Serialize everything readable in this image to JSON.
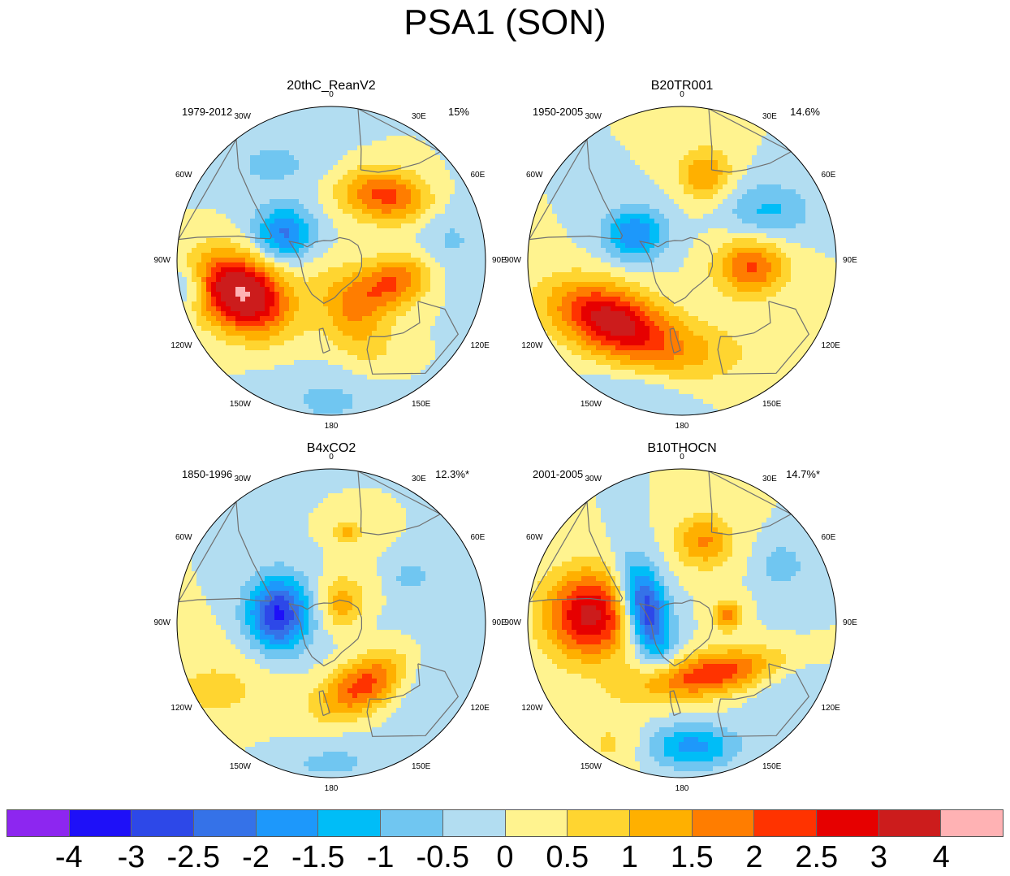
{
  "title": "PSA1 (SON)",
  "panels": [
    {
      "name": "20thC_ReanV2",
      "years": "1979-2012",
      "variance": "15%",
      "features": [
        {
          "lon": -110,
          "colat": 0.62,
          "sx": 0.22,
          "sy": 0.16,
          "rot": 30,
          "amp": 4.1
        },
        {
          "lon": 110,
          "colat": 0.42,
          "sx": 0.2,
          "sy": 0.12,
          "rot": -20,
          "amp": 2.1
        },
        {
          "lon": 40,
          "colat": 0.55,
          "sx": 0.22,
          "sy": 0.12,
          "rot": 10,
          "amp": 2.2
        },
        {
          "lon": -60,
          "colat": 0.35,
          "sx": 0.14,
          "sy": 0.12,
          "rot": 0,
          "amp": -2.1
        },
        {
          "lon": 160,
          "colat": 0.4,
          "sx": 0.25,
          "sy": 0.14,
          "rot": 60,
          "amp": 1.2
        },
        {
          "lon": -100,
          "colat": 0.95,
          "sx": 0.1,
          "sy": 0.1,
          "rot": 0,
          "amp": -1.0
        },
        {
          "lon": 80,
          "colat": 0.75,
          "sx": 0.18,
          "sy": 0.22,
          "rot": 0,
          "amp": -0.7
        },
        {
          "lon": -30,
          "colat": 0.72,
          "sx": 0.3,
          "sy": 0.15,
          "rot": 0,
          "amp": -0.6
        },
        {
          "lon": 180,
          "colat": 0.9,
          "sx": 0.3,
          "sy": 0.15,
          "rot": 0,
          "amp": -0.6
        }
      ]
    },
    {
      "name": "B20TR001",
      "years": "1950-2005",
      "variance": "14.6%",
      "features": [
        {
          "lon": -130,
          "colat": 0.6,
          "sx": 0.28,
          "sy": 0.15,
          "rot": 20,
          "amp": 3.3
        },
        {
          "lon": 95,
          "colat": 0.45,
          "sx": 0.16,
          "sy": 0.13,
          "rot": 0,
          "amp": 2.1
        },
        {
          "lon": -60,
          "colat": 0.35,
          "sx": 0.14,
          "sy": 0.12,
          "rot": 0,
          "amp": -2.0
        },
        {
          "lon": 15,
          "colat": 0.58,
          "sx": 0.12,
          "sy": 0.12,
          "rot": 0,
          "amp": 1.5
        },
        {
          "lon": 60,
          "colat": 0.65,
          "sx": 0.2,
          "sy": 0.13,
          "rot": 0,
          "amp": -1.1
        },
        {
          "lon": 175,
          "colat": 0.6,
          "sx": 0.3,
          "sy": 0.15,
          "rot": 0,
          "amp": 0.9
        },
        {
          "lon": -160,
          "colat": 0.92,
          "sx": 0.25,
          "sy": 0.12,
          "rot": 0,
          "amp": -0.6
        }
      ]
    },
    {
      "name": "B4xCO2",
      "years": "1850-1996",
      "variance": "12.3%*",
      "features": [
        {
          "lon": -80,
          "colat": 0.35,
          "sx": 0.14,
          "sy": 0.17,
          "rot": 0,
          "amp": -3.1
        },
        {
          "lon": 150,
          "colat": 0.45,
          "sx": 0.22,
          "sy": 0.12,
          "rot": -30,
          "amp": 2.6
        },
        {
          "lon": 30,
          "colat": 0.15,
          "sx": 0.1,
          "sy": 0.12,
          "rot": 0,
          "amp": 1.3
        },
        {
          "lon": 10,
          "colat": 0.6,
          "sx": 0.08,
          "sy": 0.05,
          "rot": 0,
          "amp": 1.2
        },
        {
          "lon": 60,
          "colat": 0.6,
          "sx": 0.08,
          "sy": 0.06,
          "rot": 0,
          "amp": -0.9
        },
        {
          "lon": 120,
          "colat": 0.65,
          "sx": 0.4,
          "sy": 0.2,
          "rot": 0,
          "amp": -0.6
        },
        {
          "lon": -120,
          "colat": 0.85,
          "sx": 0.35,
          "sy": 0.2,
          "rot": 0,
          "amp": 0.6
        },
        {
          "lon": 180,
          "colat": 0.9,
          "sx": 0.3,
          "sy": 0.12,
          "rot": 0,
          "amp": -0.6
        }
      ]
    },
    {
      "name": "B10THOCN",
      "years": "2001-2005",
      "variance": "14.7%*",
      "features": [
        {
          "lon": -85,
          "colat": 0.6,
          "sx": 0.2,
          "sy": 0.2,
          "rot": 0,
          "amp": 3.2
        },
        {
          "lon": -70,
          "colat": 0.25,
          "sx": 0.1,
          "sy": 0.22,
          "rot": -15,
          "amp": -3.3
        },
        {
          "lon": 150,
          "colat": 0.38,
          "sx": 0.35,
          "sy": 0.1,
          "rot": -10,
          "amp": 2.4
        },
        {
          "lon": 15,
          "colat": 0.55,
          "sx": 0.13,
          "sy": 0.12,
          "rot": 0,
          "amp": 1.6
        },
        {
          "lon": 80,
          "colat": 0.3,
          "sx": 0.07,
          "sy": 0.07,
          "rot": 0,
          "amp": 1.6
        },
        {
          "lon": 175,
          "colat": 0.8,
          "sx": 0.2,
          "sy": 0.1,
          "rot": 0,
          "amp": -1.7
        },
        {
          "lon": 60,
          "colat": 0.75,
          "sx": 0.1,
          "sy": 0.1,
          "rot": 0,
          "amp": -0.9
        },
        {
          "lon": 120,
          "colat": 0.8,
          "sx": 0.2,
          "sy": 0.2,
          "rot": 0,
          "amp": -0.6
        },
        {
          "lon": -150,
          "colat": 0.9,
          "sx": 0.15,
          "sy": 0.12,
          "rot": 0,
          "amp": 0.6
        }
      ]
    }
  ],
  "longitude_labels": [
    "0",
    "30E",
    "60E",
    "90E",
    "120E",
    "150E",
    "180",
    "150W",
    "120W",
    "90W",
    "60W",
    "30W"
  ],
  "colorbar": {
    "labels": [
      "-4",
      "-3",
      "-2.5",
      "-2",
      "-1.5",
      "-1",
      "-0.5",
      "0",
      "0.5",
      "1",
      "1.5",
      "2",
      "2.5",
      "3",
      "4"
    ],
    "colors": [
      "#8d26f0",
      "#1e10f8",
      "#2d48e8",
      "#3572e8",
      "#1d98fb",
      "#00bdf7",
      "#70c6f1",
      "#b2ddf1",
      "#fff38f",
      "#ffd530",
      "#ffb000",
      "#ff7d00",
      "#ff3300",
      "#e60000",
      "#cc1c1c",
      "#ffb2b4"
    ]
  }
}
